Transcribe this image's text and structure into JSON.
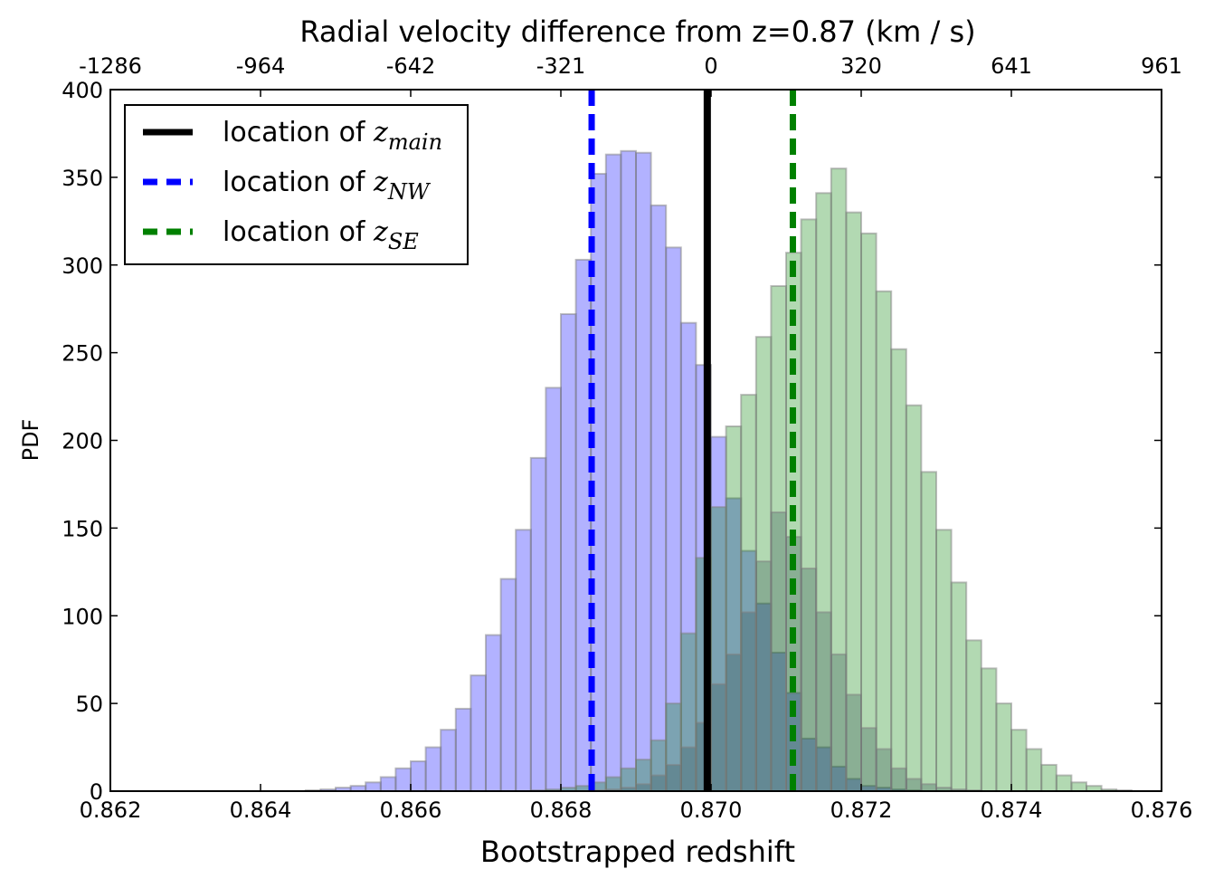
{
  "chart_data": {
    "type": "bar",
    "title": "Radial velocity difference from z=0.87 (km / s)",
    "xlabel": "Bootstrapped redshift",
    "ylabel": "PDF",
    "xlim": [
      0.862,
      0.876
    ],
    "ylim": [
      0,
      400
    ],
    "x_ticks": [
      "0.862",
      "0.864",
      "0.866",
      "0.868",
      "0.870",
      "0.872",
      "0.874",
      "0.876"
    ],
    "y_ticks": [
      "0",
      "50",
      "100",
      "150",
      "200",
      "250",
      "300",
      "350",
      "400"
    ],
    "top_ticks": [
      "-1286",
      "-964",
      "-642",
      "-321",
      "0",
      "320",
      "641",
      "961"
    ],
    "bin_width": 0.0002,
    "series": [
      {
        "name": "NW",
        "color": "#0000ff",
        "edges_start": 0.8646,
        "values": [
          0.5,
          1,
          2,
          3,
          5,
          8,
          13,
          17,
          25,
          35,
          47,
          66,
          89,
          121,
          149,
          190,
          230,
          272,
          303,
          352,
          363,
          365,
          364,
          334,
          310,
          267,
          243,
          202,
          167,
          137,
          107,
          79,
          56,
          30,
          25,
          14,
          7,
          3,
          2,
          1,
          0.5
        ]
      },
      {
        "name": "SE",
        "color": "#008000",
        "edges_start": 0.8676,
        "values": [
          0.5,
          1,
          2,
          3,
          5,
          8,
          13,
          18,
          29,
          50,
          90,
          133,
          162,
          208,
          226,
          259,
          288,
          307,
          326,
          341,
          355,
          330,
          318,
          285,
          252,
          220,
          182,
          149,
          119,
          86,
          70,
          50,
          35,
          24,
          15,
          9,
          5,
          3,
          1,
          0.5
        ]
      },
      {
        "name": "main",
        "color": "#000000",
        "edges_start": 0.8684,
        "values": [
          0.5,
          1,
          2,
          4,
          9,
          15,
          25,
          39,
          61,
          78,
          102,
          131,
          159,
          145,
          127,
          102,
          78,
          55,
          36,
          24,
          13,
          7,
          4,
          2,
          1,
          0.5
        ]
      }
    ],
    "vlines": [
      {
        "name": "main",
        "x": 0.86995,
        "color": "#000000",
        "style": "solid"
      },
      {
        "name": "NW",
        "x": 0.86841,
        "color": "#0000ff",
        "style": "dashed"
      },
      {
        "name": "SE",
        "x": 0.87109,
        "color": "#008000",
        "style": "dashed"
      }
    ],
    "legend": {
      "position": "top-left",
      "entries": [
        {
          "label": "location of ",
          "math": "z",
          "sub": "main",
          "color": "#000000",
          "style": "solid"
        },
        {
          "label": "location of ",
          "math": "z",
          "sub": "NW",
          "color": "#0000ff",
          "style": "dashed"
        },
        {
          "label": "location of ",
          "math": "z",
          "sub": "SE",
          "color": "#008000",
          "style": "dashed"
        }
      ]
    }
  }
}
